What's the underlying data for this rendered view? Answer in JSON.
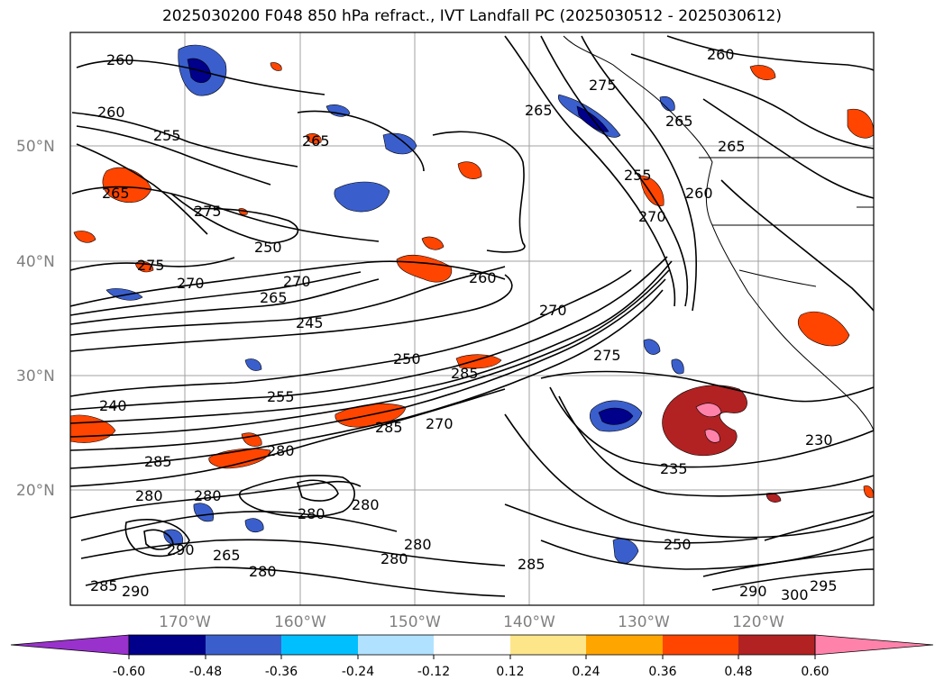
{
  "title": "2025030200 F048 850 hPa refract., IVT Landfall PC (2025030512 - 2025030612)",
  "lat_labels": [
    "50°N",
    "40°N",
    "30°N",
    "20°N"
  ],
  "lon_labels": [
    "170°W",
    "160°W",
    "150°W",
    "140°W",
    "130°W",
    "120°W"
  ],
  "contour_labels": [
    "260",
    "260",
    "255",
    "265",
    "265",
    "275",
    "250",
    "275",
    "270",
    "265",
    "270",
    "245",
    "260",
    "270",
    "250",
    "285",
    "255",
    "270",
    "285",
    "280",
    "240",
    "285",
    "280",
    "280",
    "280",
    "280",
    "290",
    "265",
    "280",
    "285",
    "280",
    "290",
    "285",
    "250",
    "280",
    "290",
    "300",
    "295",
    "235",
    "230",
    "265",
    "275",
    "265",
    "265",
    "260",
    "255",
    "260",
    "270",
    "275"
  ],
  "colorbar": {
    "tick_labels": [
      "-0.60",
      "-0.48",
      "-0.36",
      "-0.24",
      "-0.12",
      "0.12",
      "0.24",
      "0.36",
      "0.48",
      "0.60"
    ],
    "colors": [
      "#9932cc",
      "#00008b",
      "#3a5fcd",
      "#00bfff",
      "#b0e2ff",
      "#ffffff",
      "#fde68a",
      "#ffa500",
      "#ff4500",
      "#b22222",
      "#ff82ab"
    ]
  }
}
